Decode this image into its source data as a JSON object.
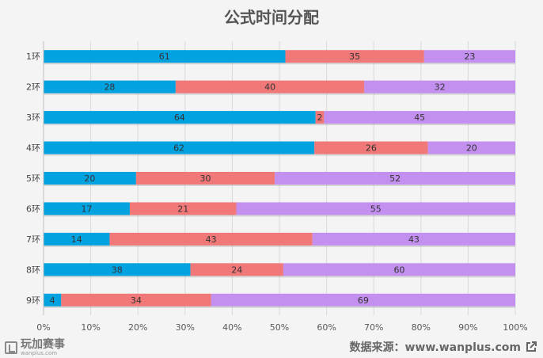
{
  "title": "公式时间分配",
  "chart_data": {
    "type": "bar",
    "orientation": "horizontal",
    "stacked": "percent",
    "categories": [
      "1环",
      "2环",
      "3环",
      "4环",
      "5环",
      "6环",
      "7环",
      "8环",
      "9环"
    ],
    "series": [
      {
        "values": [
          61,
          28,
          64,
          62,
          20,
          17,
          14,
          38,
          4
        ],
        "color": "#00a2e0"
      },
      {
        "values": [
          35,
          40,
          2,
          26,
          30,
          21,
          43,
          24,
          34
        ],
        "color": "#f07878"
      },
      {
        "values": [
          23,
          32,
          45,
          20,
          52,
          55,
          43,
          60,
          69
        ],
        "color": "#c390f0"
      }
    ],
    "x_ticks": [
      "0%",
      "10%",
      "20%",
      "30%",
      "40%",
      "50%",
      "60%",
      "70%",
      "80%",
      "90%",
      "100%"
    ],
    "xlim": [
      0,
      100
    ],
    "grid": true,
    "legend": "none"
  },
  "footer": {
    "logo_text": "玩加赛事",
    "logo_sub": "wanplus.com",
    "source": "数据来源：www.wanplus.com"
  }
}
